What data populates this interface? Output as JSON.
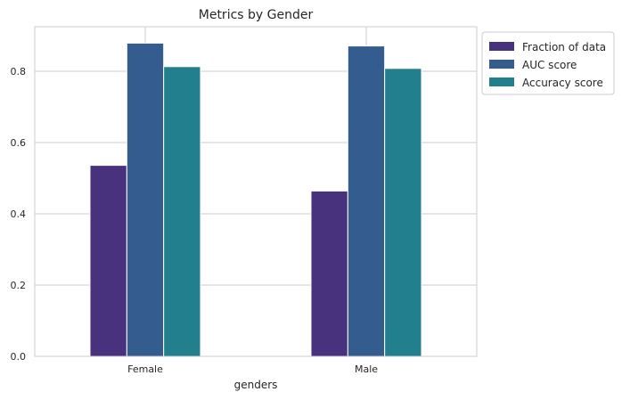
{
  "chart_data": {
    "type": "bar",
    "title": "Metrics by Gender",
    "xlabel": "genders",
    "ylabel": "",
    "categories": [
      "Female",
      "Male"
    ],
    "series": [
      {
        "name": "Fraction of data",
        "values": [
          0.536,
          0.464
        ],
        "color": "#48317d"
      },
      {
        "name": "AUC score",
        "values": [
          0.879,
          0.871
        ],
        "color": "#355c8f"
      },
      {
        "name": "Accuracy score",
        "values": [
          0.813,
          0.808
        ],
        "color": "#227f8d"
      }
    ],
    "ylim": [
      0,
      0.925
    ],
    "yticks": [
      0.0,
      0.2,
      0.4,
      0.6,
      0.8
    ],
    "ytick_labels": [
      "0.0",
      "0.2",
      "0.4",
      "0.6",
      "0.8"
    ],
    "grid": true,
    "legend_position": "outside-top-right"
  }
}
